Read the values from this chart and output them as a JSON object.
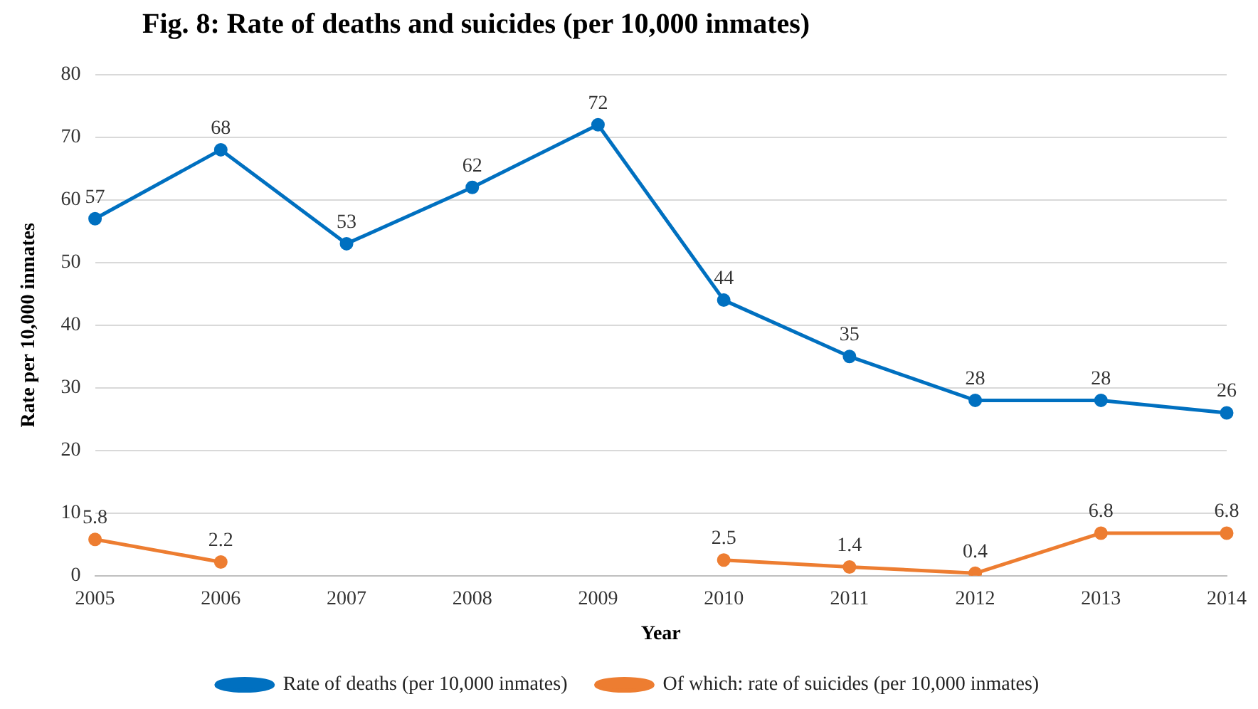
{
  "chart_data": {
    "type": "line",
    "title": "Fig. 8: Rate of deaths and suicides (per 10,000 inmates)",
    "xlabel": "Year",
    "ylabel": "Rate per 10,000 inmates",
    "categories": [
      "2005",
      "2006",
      "2007",
      "2008",
      "2009",
      "2010",
      "2011",
      "2012",
      "2013",
      "2014"
    ],
    "series": [
      {
        "name": "Rate of deaths (per 10,000 inmates)",
        "color": "#0070c0",
        "values": [
          57,
          68,
          53,
          62,
          72,
          44,
          35,
          28,
          28,
          26
        ]
      },
      {
        "name": "Of which: rate of suicides (per 10,000 inmates)",
        "color": "#ed7d31",
        "values": [
          5.8,
          2.2,
          null,
          null,
          null,
          2.5,
          1.4,
          0.4,
          6.8,
          6.8
        ]
      }
    ],
    "ylim": [
      0,
      80
    ],
    "yticks": [
      0,
      10,
      20,
      30,
      40,
      50,
      60,
      70,
      80
    ],
    "grid": "y",
    "legend": "bottom",
    "marker": "circle",
    "line_style": "solid",
    "data_labels": true
  }
}
